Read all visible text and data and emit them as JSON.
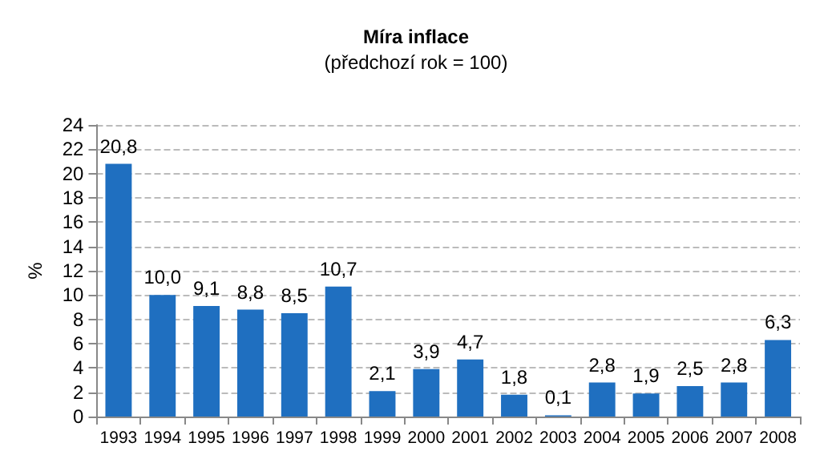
{
  "chart_data": {
    "type": "bar",
    "title": "Míra inflace",
    "subtitle": "(předchozí rok = 100)",
    "ylabel": "%",
    "categories": [
      "1993",
      "1994",
      "1995",
      "1996",
      "1997",
      "1998",
      "1999",
      "2000",
      "2001",
      "2002",
      "2003",
      "2004",
      "2005",
      "2006",
      "2007",
      "2008"
    ],
    "values": [
      20.8,
      10.0,
      9.1,
      8.8,
      8.5,
      10.7,
      2.1,
      3.9,
      4.7,
      1.8,
      0.1,
      2.8,
      1.9,
      2.5,
      2.8,
      6.3
    ],
    "value_labels": [
      "20,8",
      "10,0",
      "9,1",
      "8,8",
      "8,5",
      "10,7",
      "2,1",
      "3,9",
      "4,7",
      "1,8",
      "0,1",
      "2,8",
      "1,9",
      "2,5",
      "2,8",
      "6,3"
    ],
    "color": "#1f6fc0",
    "ylim": [
      0,
      24
    ],
    "yticks": [
      0,
      2,
      4,
      6,
      8,
      10,
      12,
      14,
      16,
      18,
      20,
      22,
      24
    ],
    "grid": "y"
  }
}
